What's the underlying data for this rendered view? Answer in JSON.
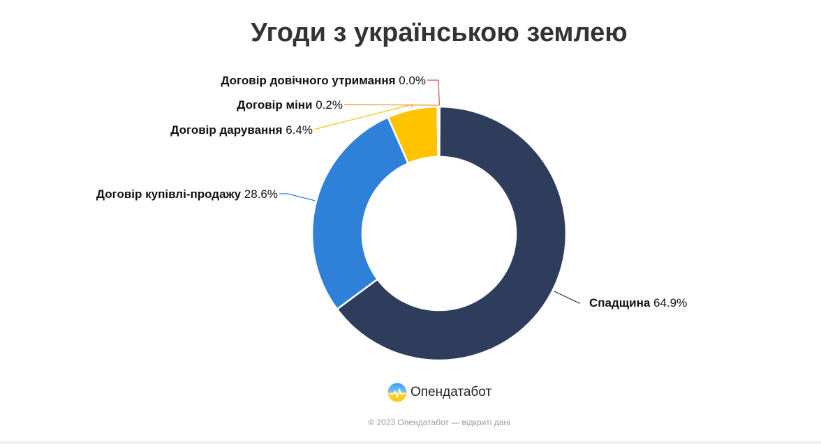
{
  "chart_data": {
    "type": "pie",
    "variant": "donut",
    "title": "Угоди з українською землею",
    "slices": [
      {
        "name": "Спадщина",
        "value": 64.9,
        "label": "64.9%",
        "color": "#2f3d5c"
      },
      {
        "name": "Договір купівлі-продажу",
        "value": 28.6,
        "label": "28.6%",
        "color": "#2e80d8"
      },
      {
        "name": "Договір дарування",
        "value": 6.4,
        "label": "6.4%",
        "color": "#ffc300"
      },
      {
        "name": "Договір міни",
        "value": 0.2,
        "label": "0.2%",
        "color": "#f08a1c"
      },
      {
        "name": "Договір довічного утримання",
        "value": 0.0,
        "label": "0.0%",
        "color": "#e0484a"
      }
    ]
  },
  "brand": {
    "name": "Опендатабот",
    "logo": "opendatabot-logo"
  },
  "footer": {
    "copyright": "© 2023 Опендатабот — відкриті дані"
  }
}
